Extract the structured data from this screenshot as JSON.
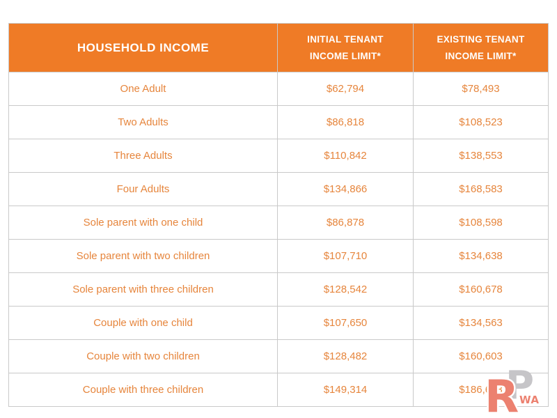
{
  "chart_data": {
    "type": "table",
    "columns": [
      "HOUSEHOLD INCOME",
      "INITIAL TENANT INCOME LIMIT*",
      "EXISTING TENANT INCOME LIMIT*"
    ],
    "rows": [
      [
        "One Adult",
        "$62,794",
        "$78,493"
      ],
      [
        "Two Adults",
        "$86,818",
        "$108,523"
      ],
      [
        "Three Adults",
        "$110,842",
        "$138,553"
      ],
      [
        "Four Adults",
        "$134,866",
        "$168,583"
      ],
      [
        "Sole parent with one child",
        "$86,878",
        "$108,598"
      ],
      [
        "Sole parent with two children",
        "$107,710",
        "$134,638"
      ],
      [
        "Sole parent with three children",
        "$128,542",
        "$160,678"
      ],
      [
        "Couple with one child",
        "$107,650",
        "$134,563"
      ],
      [
        "Couple with two children",
        "$128,482",
        "$160,603"
      ],
      [
        "Couple with three children",
        "$149,314",
        "$186,643"
      ]
    ],
    "layout_hints": {
      "header_style": "orange band, white bold text",
      "grid": "on",
      "alignment": "all cells centered"
    }
  },
  "colors": {
    "header_bg": "#ef7b26",
    "header_text": "#ffffff",
    "row_text": "#e6853c",
    "border": "#c9c9c9",
    "watermark_salmon": "#ec8170",
    "watermark_gray": "#c6c5c8"
  },
  "watermark": {
    "letter_r": "R",
    "letter_p": "P",
    "suffix": "WA"
  }
}
